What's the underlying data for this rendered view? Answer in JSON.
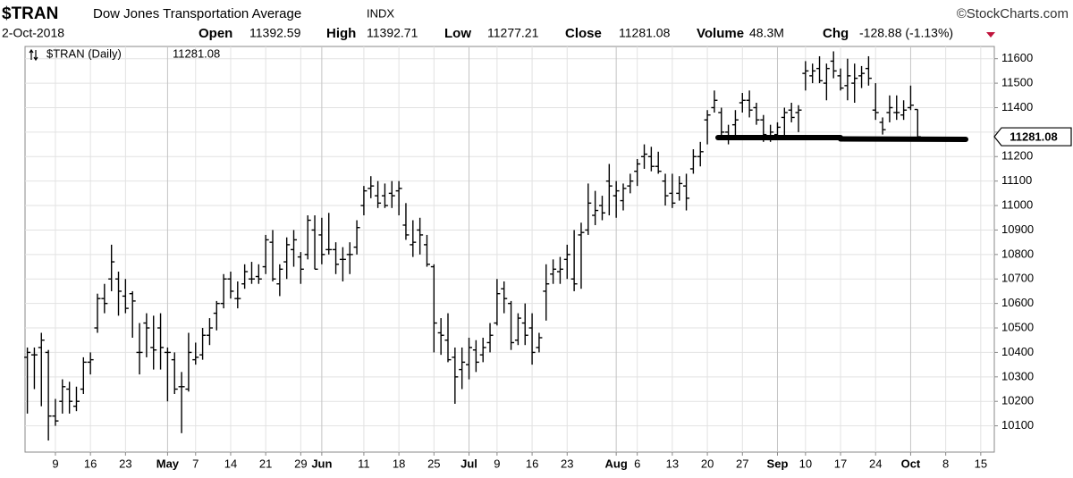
{
  "chart_data": {
    "type": "ohlc",
    "title": "$TRAN",
    "subtitle": "Dow Jones Transportation Average",
    "exchange": "INDX",
    "source": "©StockCharts.com",
    "date": "2-Oct-2018",
    "labels": {
      "open": "Open",
      "high": "High",
      "low": "Low",
      "close": "Close",
      "volume": "Volume",
      "chg": "Chg"
    },
    "volume": "48.3M",
    "change": "-128.88 (-1.13%)",
    "change_color": "#c0143c",
    "x": [
      "2018-04-03",
      "2018-04-04",
      "2018-04-05",
      "2018-04-06",
      "2018-04-09",
      "2018-04-10",
      "2018-04-11",
      "2018-04-12",
      "2018-04-13",
      "2018-04-16",
      "2018-04-17",
      "2018-04-18",
      "2018-04-19",
      "2018-04-20",
      "2018-04-23",
      "2018-04-24",
      "2018-04-25",
      "2018-04-26",
      "2018-04-27",
      "2018-04-30",
      "2018-05-01",
      "2018-05-02",
      "2018-05-03",
      "2018-05-04",
      "2018-05-07",
      "2018-05-08",
      "2018-05-09",
      "2018-05-10",
      "2018-05-11",
      "2018-05-14",
      "2018-05-15",
      "2018-05-16",
      "2018-05-17",
      "2018-05-18",
      "2018-05-21",
      "2018-05-22",
      "2018-05-23",
      "2018-05-24",
      "2018-05-25",
      "2018-05-29",
      "2018-05-30",
      "2018-05-31",
      "2018-06-01",
      "2018-06-04",
      "2018-06-05",
      "2018-06-06",
      "2018-06-07",
      "2018-06-08",
      "2018-06-11",
      "2018-06-12",
      "2018-06-13",
      "2018-06-14",
      "2018-06-15",
      "2018-06-18",
      "2018-06-19",
      "2018-06-20",
      "2018-06-21",
      "2018-06-22",
      "2018-06-25",
      "2018-06-26",
      "2018-06-27",
      "2018-06-28",
      "2018-06-29",
      "2018-07-02",
      "2018-07-03",
      "2018-07-05",
      "2018-07-06",
      "2018-07-09",
      "2018-07-10",
      "2018-07-11",
      "2018-07-12",
      "2018-07-13",
      "2018-07-16",
      "2018-07-17",
      "2018-07-18",
      "2018-07-19",
      "2018-07-20",
      "2018-07-23",
      "2018-07-24",
      "2018-07-25",
      "2018-07-26",
      "2018-07-27",
      "2018-07-30",
      "2018-07-31",
      "2018-08-01",
      "2018-08-02",
      "2018-08-03",
      "2018-08-06",
      "2018-08-07",
      "2018-08-08",
      "2018-08-09",
      "2018-08-10",
      "2018-08-13",
      "2018-08-14",
      "2018-08-15",
      "2018-08-16",
      "2018-08-17",
      "2018-08-20",
      "2018-08-21",
      "2018-08-22",
      "2018-08-23",
      "2018-08-24",
      "2018-08-27",
      "2018-08-28",
      "2018-08-29",
      "2018-08-30",
      "2018-08-31",
      "2018-09-04",
      "2018-09-05",
      "2018-09-06",
      "2018-09-07",
      "2018-09-10",
      "2018-09-11",
      "2018-09-12",
      "2018-09-13",
      "2018-09-14",
      "2018-09-17",
      "2018-09-18",
      "2018-09-19",
      "2018-09-20",
      "2018-09-21",
      "2018-09-24",
      "2018-09-25",
      "2018-09-26",
      "2018-09-27",
      "2018-09-28",
      "2018-10-01",
      "2018-10-02"
    ],
    "series": [
      {
        "name": "$TRAN (Daily)",
        "color": "#000000",
        "open": [
          10380,
          10390,
          10420,
          10400,
          10140,
          10200,
          10250,
          10180,
          10250,
          10360,
          10500,
          10620,
          10700,
          10700,
          10630,
          10640,
          10400,
          10520,
          10420,
          10500,
          10400,
          10370,
          10260,
          10250,
          10370,
          10390,
          10470,
          10560,
          10600,
          10700,
          10620,
          10680,
          10700,
          10710,
          10750,
          10850,
          10680,
          10770,
          10820,
          10790,
          10800,
          10900,
          10880,
          10820,
          10820,
          10780,
          10800,
          10830,
          11000,
          11070,
          11040,
          11040,
          11050,
          11060,
          10920,
          10840,
          10900,
          10840,
          10750,
          10480,
          10450,
          10380,
          10330,
          10350,
          10410,
          10390,
          10440,
          10520,
          10660,
          10600,
          10450,
          10520,
          10500,
          10420,
          10650,
          10720,
          10730,
          10780,
          10700,
          10880,
          10900,
          10960,
          11000,
          11100,
          11040,
          11020,
          11080,
          11140,
          11200,
          11200,
          11160,
          11100,
          11050,
          11050,
          11080,
          11150,
          11200,
          11350,
          11400,
          11380,
          11300,
          11330,
          11420,
          11430,
          11400,
          11350,
          11280,
          11290,
          11360,
          11390,
          11380,
          11540,
          11530,
          11560,
          11500,
          11590,
          11530,
          11490,
          11500,
          11530,
          11560,
          11390,
          11340,
          11380,
          11380,
          11370,
          11400,
          11392.59
        ],
        "high": [
          10420,
          10420,
          10480,
          10410,
          10210,
          10290,
          10280,
          10260,
          10380,
          10400,
          10640,
          10680,
          10840,
          10730,
          10700,
          10650,
          10520,
          10560,
          10550,
          10560,
          10420,
          10400,
          10320,
          10480,
          10440,
          10500,
          10540,
          10610,
          10720,
          10730,
          10690,
          10760,
          10770,
          10760,
          10880,
          10900,
          10760,
          10870,
          10900,
          10810,
          10960,
          10960,
          10950,
          10970,
          10850,
          10830,
          10850,
          10940,
          11080,
          11120,
          11100,
          11090,
          11100,
          11100,
          11010,
          10940,
          10950,
          10880,
          10760,
          10540,
          10560,
          10420,
          10420,
          10460,
          10450,
          10460,
          10520,
          10700,
          10690,
          10610,
          10560,
          10600,
          10560,
          10480,
          10760,
          10780,
          10790,
          10840,
          10900,
          10930,
          11090,
          11060,
          11040,
          11170,
          11100,
          11090,
          11130,
          11190,
          11250,
          11240,
          11220,
          11130,
          11130,
          11120,
          11130,
          11230,
          11260,
          11390,
          11470,
          11400,
          11330,
          11390,
          11460,
          11470,
          11420,
          11370,
          11330,
          11340,
          11400,
          11420,
          11410,
          11590,
          11580,
          11610,
          11580,
          11630,
          11560,
          11600,
          11580,
          11570,
          11610,
          11500,
          11360,
          11450,
          11450,
          11430,
          11490,
          11392.71
        ],
        "low": [
          10150,
          10250,
          10180,
          10040,
          10100,
          10150,
          10150,
          10160,
          10230,
          10310,
          10480,
          10560,
          10650,
          10550,
          10560,
          10460,
          10310,
          10380,
          10330,
          10330,
          10200,
          10230,
          10070,
          10240,
          10350,
          10370,
          10430,
          10490,
          10580,
          10620,
          10580,
          10660,
          10680,
          10680,
          10720,
          10690,
          10630,
          10700,
          10750,
          10680,
          10780,
          10740,
          10760,
          10800,
          10720,
          10690,
          10720,
          10800,
          10960,
          11030,
          10990,
          10990,
          10990,
          10960,
          10860,
          10790,
          10800,
          10750,
          10400,
          10390,
          10360,
          10190,
          10250,
          10290,
          10320,
          10360,
          10400,
          10510,
          10560,
          10410,
          10430,
          10430,
          10350,
          10400,
          10530,
          10680,
          10680,
          10700,
          10650,
          10660,
          10880,
          10920,
          10940,
          10960,
          10950,
          10980,
          11050,
          11080,
          11150,
          11140,
          11130,
          11000,
          10990,
          11020,
          10980,
          11130,
          11160,
          11250,
          11380,
          11280,
          11250,
          11280,
          11380,
          11360,
          11330,
          11260,
          11260,
          11270,
          11280,
          11340,
          11300,
          11470,
          11500,
          11500,
          11430,
          11520,
          11470,
          11430,
          11420,
          11480,
          11490,
          11350,
          11290,
          11340,
          11350,
          11350,
          11390,
          11277.21
        ],
        "close": [
          10400,
          10390,
          10450,
          10140,
          10120,
          10260,
          10200,
          10200,
          10360,
          10370,
          10620,
          10600,
          10770,
          10650,
          10580,
          10610,
          10400,
          10500,
          10410,
          10420,
          10400,
          10250,
          10260,
          10400,
          10380,
          10470,
          10500,
          10600,
          10700,
          10650,
          10620,
          10730,
          10700,
          10700,
          10860,
          10700,
          10740,
          10840,
          10860,
          10740,
          10940,
          10740,
          10800,
          10820,
          10760,
          10780,
          10800,
          10910,
          11060,
          11080,
          11010,
          11000,
          11040,
          11070,
          10880,
          10850,
          10880,
          10760,
          10520,
          10470,
          10370,
          10300,
          10360,
          10420,
          10360,
          10420,
          10470,
          10640,
          10620,
          10440,
          10540,
          10470,
          10400,
          10460,
          10680,
          10740,
          10740,
          10800,
          10680,
          10890,
          11010,
          10980,
          10970,
          11080,
          11060,
          11070,
          11100,
          11170,
          11210,
          11160,
          11140,
          11040,
          11010,
          11090,
          11030,
          11200,
          11220,
          11370,
          11430,
          11300,
          11270,
          11350,
          11430,
          11390,
          11350,
          11290,
          11300,
          11320,
          11380,
          11360,
          11390,
          11550,
          11550,
          11510,
          11560,
          11550,
          11480,
          11530,
          11520,
          11540,
          11520,
          11380,
          11310,
          11400,
          11380,
          11390,
          11410,
          11281.08
        ]
      }
    ],
    "xticks": [
      {
        "value": "2018-04-09",
        "label": "9"
      },
      {
        "value": "2018-04-16",
        "label": "16"
      },
      {
        "value": "2018-04-23",
        "label": "23"
      },
      {
        "value": "2018-05-01",
        "label": "May"
      },
      {
        "value": "2018-05-07",
        "label": "7"
      },
      {
        "value": "2018-05-14",
        "label": "14"
      },
      {
        "value": "2018-05-21",
        "label": "21"
      },
      {
        "value": "2018-05-29",
        "label": "29"
      },
      {
        "value": "2018-06-01",
        "label": "Jun"
      },
      {
        "value": "2018-06-11",
        "label": "11"
      },
      {
        "value": "2018-06-18",
        "label": "18"
      },
      {
        "value": "2018-06-25",
        "label": "25"
      },
      {
        "value": "2018-07-02",
        "label": "Jul"
      },
      {
        "value": "2018-07-09",
        "label": "9"
      },
      {
        "value": "2018-07-16",
        "label": "16"
      },
      {
        "value": "2018-07-23",
        "label": "23"
      },
      {
        "value": "2018-08-01",
        "label": "Aug"
      },
      {
        "value": "2018-08-06",
        "label": "6"
      },
      {
        "value": "2018-08-13",
        "label": "13"
      },
      {
        "value": "2018-08-20",
        "label": "20"
      },
      {
        "value": "2018-08-27",
        "label": "27"
      },
      {
        "value": "2018-09-04",
        "label": "Sep"
      },
      {
        "value": "2018-09-10",
        "label": "10"
      },
      {
        "value": "2018-09-17",
        "label": "17"
      },
      {
        "value": "2018-09-24",
        "label": "24"
      },
      {
        "value": "2018-10-01",
        "label": "Oct"
      },
      {
        "value": "2018-10-08",
        "label": "8"
      },
      {
        "value": "2018-10-15",
        "label": "15"
      }
    ],
    "ylim": [
      10000,
      11650
    ],
    "yticks": [
      10100,
      10200,
      10300,
      10400,
      10500,
      10600,
      10700,
      10800,
      10900,
      11000,
      11100,
      11200,
      11300,
      11400,
      11500,
      11600
    ],
    "grid": true
  }
}
